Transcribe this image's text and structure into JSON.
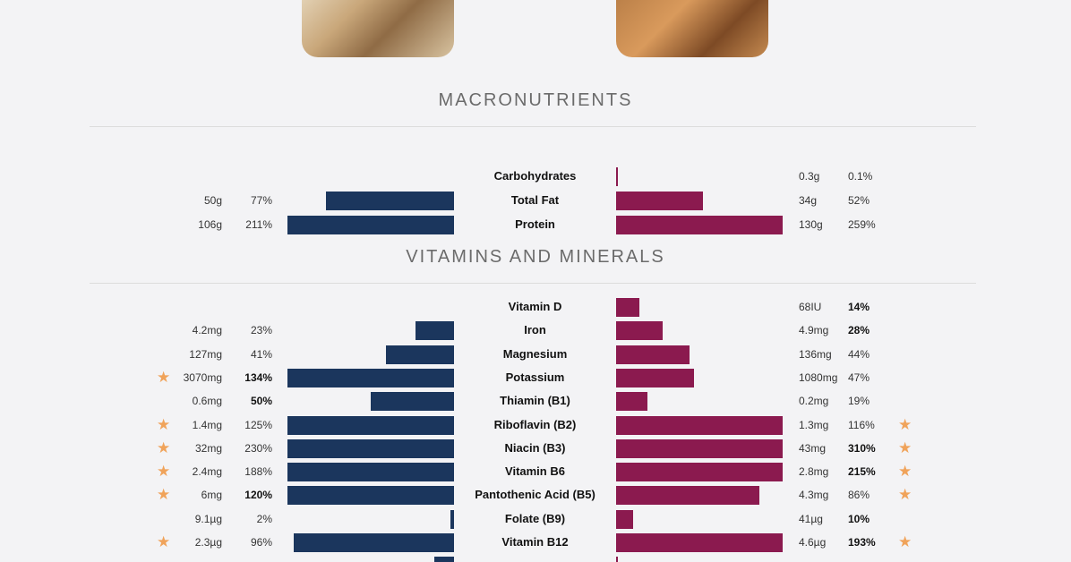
{
  "sections": {
    "macro_title": "MACRONUTRIENTS",
    "vitamin_title": "VITAMINS AND MINERALS"
  },
  "colors": {
    "left_series": "#1b365d",
    "right_series": "#8b1a4f",
    "star": "#f0a35a"
  },
  "chart_data": [
    {
      "type": "bar",
      "title": "MACRONUTRIENTS",
      "orientation": "horizontal-butterfly",
      "bar_cap_percent": 100,
      "rows": [
        {
          "label": "Carbohydrates",
          "left": {
            "amount": "",
            "pct": "",
            "value": 0
          },
          "right": {
            "amount": "0.3g",
            "pct": "0.1%",
            "value": 0.1
          }
        },
        {
          "label": "Total Fat",
          "left": {
            "amount": "50g",
            "pct": "77%",
            "value": 77
          },
          "right": {
            "amount": "34g",
            "pct": "52%",
            "value": 52
          }
        },
        {
          "label": "Protein",
          "left": {
            "amount": "106g",
            "pct": "211%",
            "value": 211
          },
          "right": {
            "amount": "130g",
            "pct": "259%",
            "value": 259
          }
        }
      ]
    },
    {
      "type": "bar",
      "title": "VITAMINS AND MINERALS",
      "orientation": "horizontal-butterfly",
      "bar_cap_percent": 100,
      "rows": [
        {
          "label": "Vitamin D",
          "left": {
            "amount": "",
            "pct": "",
            "value": 0
          },
          "right": {
            "amount": "68IU",
            "pct": "14%",
            "value": 14,
            "bold": true
          }
        },
        {
          "label": "Iron",
          "left": {
            "amount": "4.2mg",
            "pct": "23%",
            "value": 23
          },
          "right": {
            "amount": "4.9mg",
            "pct": "28%",
            "value": 28,
            "bold": true
          }
        },
        {
          "label": "Magnesium",
          "left": {
            "amount": "127mg",
            "pct": "41%",
            "value": 41
          },
          "right": {
            "amount": "136mg",
            "pct": "44%",
            "value": 44
          }
        },
        {
          "label": "Potassium",
          "left": {
            "amount": "3070mg",
            "pct": "134%",
            "value": 134,
            "bold": true,
            "star": true
          },
          "right": {
            "amount": "1080mg",
            "pct": "47%",
            "value": 47
          }
        },
        {
          "label": "Thiamin (B1)",
          "left": {
            "amount": "0.6mg",
            "pct": "50%",
            "value": 50,
            "bold": true
          },
          "right": {
            "amount": "0.2mg",
            "pct": "19%",
            "value": 19
          }
        },
        {
          "label": "Riboflavin (B2)",
          "left": {
            "amount": "1.4mg",
            "pct": "125%",
            "value": 125,
            "star": true
          },
          "right": {
            "amount": "1.3mg",
            "pct": "116%",
            "value": 116,
            "star": true
          }
        },
        {
          "label": "Niacin (B3)",
          "left": {
            "amount": "32mg",
            "pct": "230%",
            "value": 230,
            "star": true
          },
          "right": {
            "amount": "43mg",
            "pct": "310%",
            "value": 310,
            "bold": true,
            "star": true
          }
        },
        {
          "label": "Vitamin B6",
          "left": {
            "amount": "2.4mg",
            "pct": "188%",
            "value": 188,
            "star": true
          },
          "right": {
            "amount": "2.8mg",
            "pct": "215%",
            "value": 215,
            "bold": true,
            "star": true
          }
        },
        {
          "label": "Pantothenic Acid (B5)",
          "left": {
            "amount": "6mg",
            "pct": "120%",
            "value": 120,
            "bold": true,
            "star": true
          },
          "right": {
            "amount": "4.3mg",
            "pct": "86%",
            "value": 86,
            "star": true
          }
        },
        {
          "label": "Folate (B9)",
          "left": {
            "amount": "9.1µg",
            "pct": "2%",
            "value": 2
          },
          "right": {
            "amount": "41µg",
            "pct": "10%",
            "value": 10,
            "bold": true
          }
        },
        {
          "label": "Vitamin B12",
          "left": {
            "amount": "2.3µg",
            "pct": "96%",
            "value": 96,
            "star": true
          },
          "right": {
            "amount": "4.6µg",
            "pct": "193%",
            "value": 193,
            "bold": true,
            "star": true
          }
        },
        {
          "label": "",
          "left": {
            "amount": "",
            "pct": "",
            "value": 12
          },
          "right": {
            "amount": "",
            "pct": "",
            "value": 1
          }
        }
      ]
    }
  ]
}
